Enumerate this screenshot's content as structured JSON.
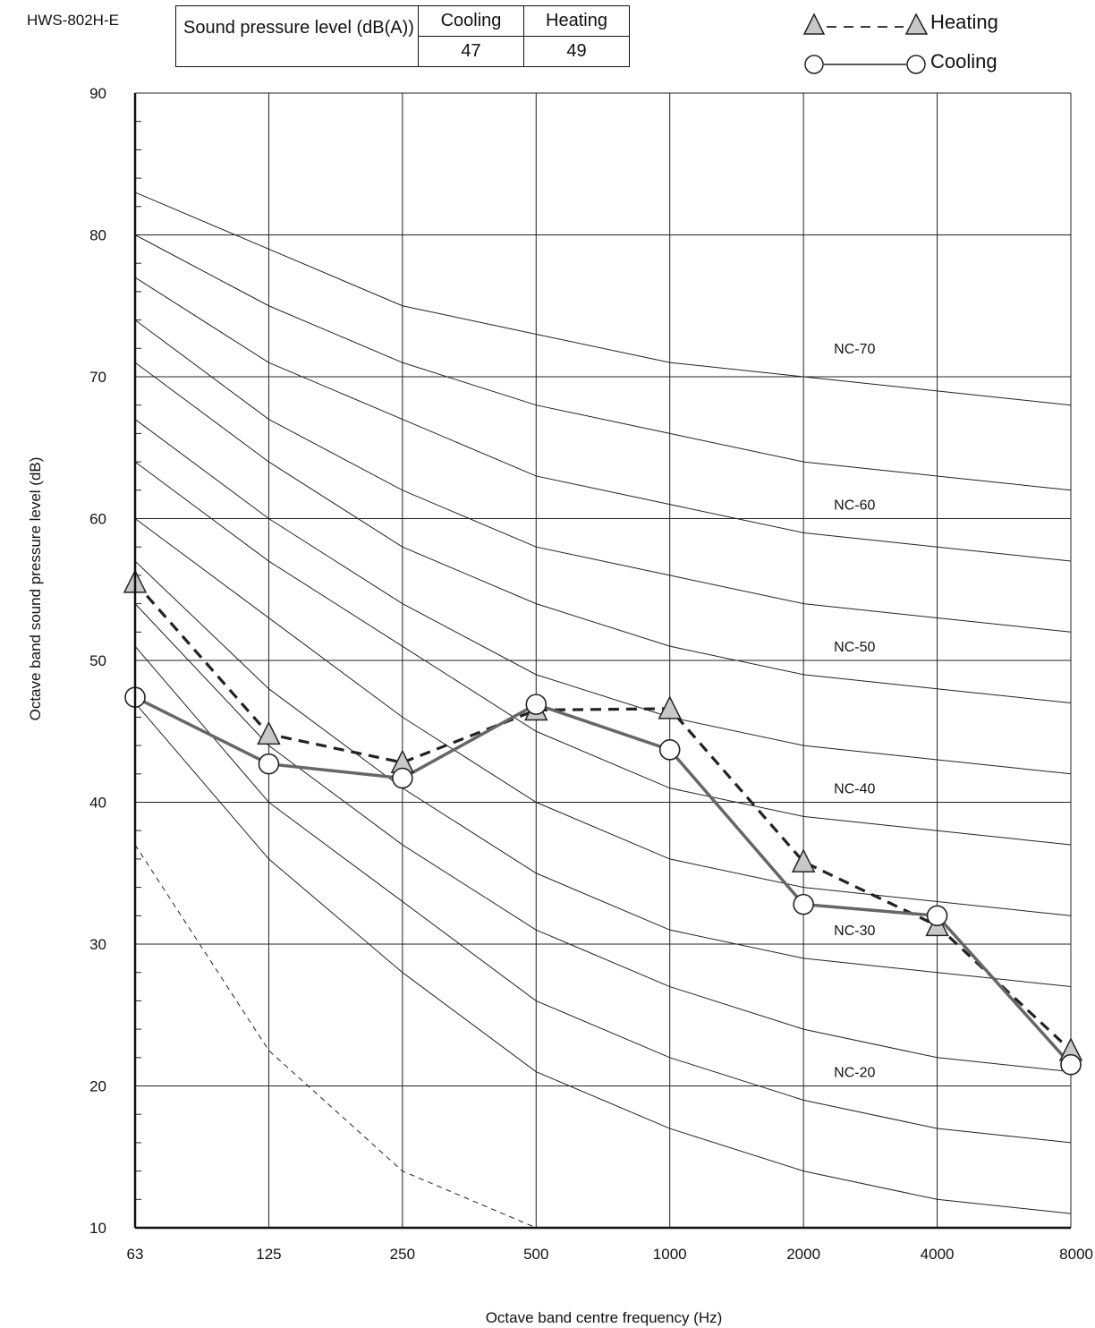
{
  "model": "HWS-802H-E",
  "table": {
    "header_label": "Sound pressure level (dB(A))",
    "cooling_label": "Cooling",
    "heating_label": "Heating",
    "cooling_value": "47",
    "heating_value": "49"
  },
  "legend": {
    "heating_label": "Heating",
    "cooling_label": "Cooling"
  },
  "chart_data": {
    "type": "line",
    "xlabel": "Octave band centre frequency (Hz)",
    "ylabel": "Octave band sound pressure level  (dB)",
    "x": [
      "63",
      "125",
      "250",
      "500",
      "1000",
      "2000",
      "4000",
      "8000"
    ],
    "y_ticks": [
      10,
      20,
      30,
      40,
      50,
      60,
      70,
      80,
      90
    ],
    "ylim": [
      10,
      90
    ],
    "grid": true,
    "legend_position": "top-right",
    "series": [
      {
        "name": "Heating",
        "values": [
          55.5,
          44.8,
          42.8,
          46.5,
          46.6,
          35.8,
          31.3,
          22.5
        ],
        "color": "#222222",
        "dash": true,
        "marker": "triangle"
      },
      {
        "name": "Cooling",
        "values": [
          47.4,
          42.7,
          41.7,
          46.9,
          43.7,
          32.8,
          32.0,
          21.5
        ],
        "color": "#666666",
        "dash": false,
        "marker": "circle"
      }
    ],
    "nc_curves": [
      {
        "label": "NC-70",
        "values": [
          83,
          79,
          75,
          73,
          71,
          70,
          69,
          68
        ]
      },
      {
        "label": "",
        "values": [
          80,
          75,
          71,
          68,
          66,
          64,
          63,
          62
        ]
      },
      {
        "label": "NC-60",
        "values": [
          77,
          71,
          67,
          63,
          61,
          59,
          58,
          57
        ]
      },
      {
        "label": "",
        "values": [
          74,
          67,
          62,
          58,
          56,
          54,
          53,
          52
        ]
      },
      {
        "label": "NC-50",
        "values": [
          71,
          64,
          58,
          54,
          51,
          49,
          48,
          47
        ]
      },
      {
        "label": "",
        "values": [
          67,
          60,
          54,
          49,
          46,
          44,
          43,
          42
        ]
      },
      {
        "label": "NC-40",
        "values": [
          64,
          57,
          51,
          45,
          41,
          39,
          38,
          37
        ]
      },
      {
        "label": "",
        "values": [
          60,
          53,
          46,
          40,
          36,
          34,
          33,
          32
        ]
      },
      {
        "label": "NC-30",
        "values": [
          57,
          48,
          41,
          35,
          31,
          29,
          28,
          27
        ]
      },
      {
        "label": "",
        "values": [
          54,
          44,
          37,
          31,
          27,
          24,
          22,
          21
        ]
      },
      {
        "label": "NC-20",
        "values": [
          51,
          40,
          33,
          26,
          22,
          19,
          17,
          16
        ]
      },
      {
        "label": "",
        "values": [
          47,
          36,
          28,
          21,
          17,
          14,
          12,
          11
        ]
      }
    ],
    "threshold_curve": [
      37,
      22.5,
      14,
      10
    ]
  }
}
